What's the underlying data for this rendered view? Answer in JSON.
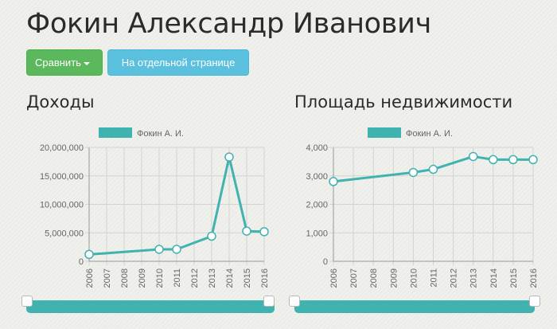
{
  "page": {
    "title": "Фокин Александр Иванович"
  },
  "buttons": {
    "compare_label": "Сравнить",
    "separate_page_label": "На отдельной странице"
  },
  "colors": {
    "series": "#40b3b0",
    "compare_button": "#5cb85c",
    "separate_page_button": "#5bc0de"
  },
  "chart_data": [
    {
      "type": "line",
      "title": "Доходы",
      "legend": "top",
      "grid": true,
      "x": [
        "2006",
        "2007",
        "2008",
        "2009",
        "2010",
        "2011",
        "2012",
        "2013",
        "2014",
        "2015",
        "2016"
      ],
      "series": [
        {
          "name": "Фокин А. И.",
          "values": [
            1200000,
            null,
            null,
            null,
            2100000,
            2100000,
            null,
            4400000,
            18300000,
            5300000,
            5200000
          ]
        }
      ],
      "yticks": [
        0,
        5000000,
        10000000,
        15000000,
        20000000
      ],
      "ytick_labels": [
        "0",
        "5,000,000",
        "10,000,000",
        "15,000,000",
        "20,000,000"
      ],
      "ylim": [
        0,
        20000000
      ]
    },
    {
      "type": "line",
      "title": "Площадь недвижимости",
      "legend": "top",
      "grid": true,
      "x": [
        "2006",
        "2007",
        "2008",
        "2009",
        "2010",
        "2011",
        "2012",
        "2013",
        "2014",
        "2015",
        "2016"
      ],
      "series": [
        {
          "name": "Фокин А. И.",
          "values": [
            2800,
            null,
            null,
            null,
            3120,
            3230,
            null,
            3680,
            3570,
            3570,
            3570
          ]
        }
      ],
      "yticks": [
        0,
        1000,
        2000,
        3000,
        4000
      ],
      "ytick_labels": [
        "0",
        "1,000",
        "2,000",
        "3,000",
        "4,000"
      ],
      "ylim": [
        0,
        4000
      ]
    }
  ]
}
